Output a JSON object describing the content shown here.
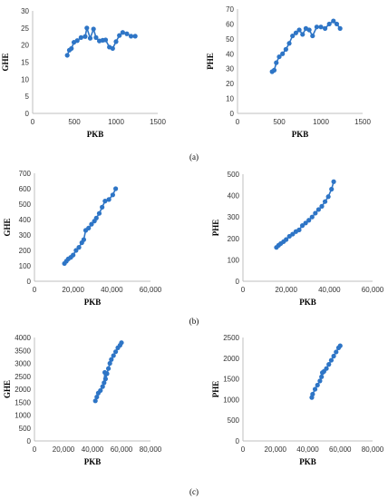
{
  "colors": {
    "series": "#2e75c6",
    "axis": "#bfbfbf"
  },
  "chart_data": [
    {
      "type": "line",
      "panel": "(a)",
      "xlabel": "PKB",
      "ylabel": "GHE",
      "xlim": [
        0,
        1500
      ],
      "ylim": [
        0,
        30
      ],
      "xticks": [
        0,
        500,
        1000,
        1500
      ],
      "xtick_labels": [
        "0",
        "500",
        "1000",
        "1500"
      ],
      "yticks": [
        0,
        5,
        10,
        15,
        20,
        25,
        30
      ],
      "ytick_labels": [
        "0",
        "5",
        "10",
        "15",
        "20",
        "25",
        "30"
      ],
      "series": [
        {
          "x": [
            415,
            440,
            465,
            495,
            535,
            580,
            630,
            650,
            690,
            730,
            760,
            800,
            840,
            875,
            920,
            960,
            1000,
            1040,
            1080,
            1130,
            1180,
            1230
          ],
          "y": [
            17,
            18.5,
            19,
            20.8,
            21.3,
            22.2,
            22.5,
            25,
            22,
            24.7,
            22.2,
            21.2,
            21.4,
            21.5,
            19.4,
            19,
            21,
            22.8,
            23.7,
            23.3,
            22.6,
            22.6
          ]
        }
      ]
    },
    {
      "type": "line",
      "panel": "(a)",
      "xlabel": "PKB",
      "ylabel": "PHE",
      "xlim": [
        0,
        1500
      ],
      "ylim": [
        0,
        70
      ],
      "xticks": [
        0,
        500,
        1000,
        1500
      ],
      "xtick_labels": [
        "0",
        "500",
        "1000",
        "1500"
      ],
      "yticks": [
        0,
        10,
        20,
        30,
        40,
        50,
        60,
        70
      ],
      "ytick_labels": [
        "0",
        "10",
        "20",
        "30",
        "40",
        "50",
        "60",
        "70"
      ],
      "series": [
        {
          "x": [
            415,
            440,
            465,
            500,
            540,
            580,
            620,
            660,
            700,
            740,
            780,
            820,
            860,
            900,
            950,
            1000,
            1050,
            1100,
            1150,
            1190,
            1230
          ],
          "y": [
            28,
            29,
            34,
            38,
            40,
            43,
            47,
            52,
            54,
            56,
            53,
            57,
            56,
            52,
            58,
            58,
            57,
            60,
            62,
            60,
            57
          ]
        }
      ]
    },
    {
      "type": "line",
      "panel": "(b)",
      "xlabel": "PKB",
      "ylabel": "GHE",
      "xlim": [
        0,
        60000
      ],
      "ylim": [
        0,
        700
      ],
      "xticks": [
        0,
        20000,
        40000,
        60000
      ],
      "xtick_labels": [
        "0",
        "20,000",
        "40,000",
        "60,000"
      ],
      "yticks": [
        0,
        100,
        200,
        300,
        400,
        500,
        600,
        700
      ],
      "ytick_labels": [
        "0",
        "100",
        "200",
        "300",
        "400",
        "500",
        "600",
        "700"
      ],
      "series": [
        {
          "x": [
            15500,
            16500,
            17500,
            18800,
            20000,
            21500,
            23000,
            24500,
            25500,
            26500,
            28000,
            29500,
            31000,
            32000,
            33500,
            35000,
            36500,
            38500,
            40500,
            42000
          ],
          "y": [
            115,
            130,
            145,
            155,
            170,
            200,
            220,
            250,
            270,
            330,
            345,
            370,
            390,
            410,
            440,
            480,
            520,
            530,
            560,
            600
          ]
        }
      ]
    },
    {
      "type": "line",
      "panel": "(b)",
      "xlabel": "PKB",
      "ylabel": "PHE",
      "xlim": [
        0,
        60000
      ],
      "ylim": [
        0,
        500
      ],
      "xticks": [
        0,
        20000,
        40000,
        60000
      ],
      "xtick_labels": [
        "0",
        "20,000",
        "40,000",
        "60,000"
      ],
      "yticks": [
        0,
        100,
        200,
        300,
        400,
        500
      ],
      "ytick_labels": [
        "0",
        "100",
        "200",
        "300",
        "400",
        "500"
      ],
      "series": [
        {
          "x": [
            15500,
            16500,
            17500,
            18800,
            20000,
            21500,
            23000,
            24500,
            26000,
            27500,
            29000,
            30500,
            32000,
            33500,
            35000,
            36500,
            38000,
            39500,
            41000,
            42000
          ],
          "y": [
            158,
            168,
            176,
            185,
            195,
            210,
            220,
            232,
            240,
            260,
            272,
            285,
            300,
            318,
            335,
            350,
            372,
            395,
            430,
            465
          ]
        }
      ]
    },
    {
      "type": "line",
      "panel": "(c)",
      "xlabel": "PKB",
      "ylabel": "GHE",
      "xlim": [
        0,
        80000
      ],
      "ylim": [
        0,
        4000
      ],
      "xticks": [
        0,
        20000,
        40000,
        60000,
        80000
      ],
      "xtick_labels": [
        "0",
        "20,000",
        "40,000",
        "60,000",
        "80,000"
      ],
      "yticks": [
        0,
        500,
        1000,
        1500,
        2000,
        2500,
        3000,
        3500,
        4000
      ],
      "ytick_labels": [
        "0",
        "500",
        "1000",
        "1500",
        "2000",
        "2500",
        "3000",
        "3500",
        "4000"
      ],
      "series": [
        {
          "x": [
            42000,
            43000,
            44000,
            45500,
            47000,
            48000,
            48500,
            49000,
            50000,
            51000,
            52000,
            53000,
            54500,
            56000,
            57500,
            59000,
            60000
          ],
          "y": [
            1550,
            1700,
            1850,
            1950,
            2100,
            2250,
            2650,
            2400,
            2600,
            2800,
            3000,
            3150,
            3300,
            3450,
            3600,
            3700,
            3800
          ]
        }
      ]
    },
    {
      "type": "line",
      "panel": "(c)",
      "xlabel": "PKB",
      "ylabel": "PHE",
      "xlim": [
        0,
        80000
      ],
      "ylim": [
        0,
        2500
      ],
      "xticks": [
        0,
        20000,
        40000,
        60000,
        80000
      ],
      "xtick_labels": [
        "0",
        "20,000",
        "40,000",
        "60,000",
        "80,000"
      ],
      "yticks": [
        0,
        500,
        1000,
        1500,
        2000,
        2500
      ],
      "ytick_labels": [
        "0",
        "500",
        "1000",
        "1500",
        "2000",
        "2500"
      ],
      "series": [
        {
          "x": [
            42500,
            43000,
            44500,
            46000,
            47500,
            48500,
            49000,
            50000,
            51500,
            53000,
            54500,
            56000,
            57500,
            59000,
            60000
          ],
          "y": [
            1050,
            1130,
            1250,
            1350,
            1450,
            1550,
            1650,
            1680,
            1750,
            1850,
            1950,
            2050,
            2150,
            2250,
            2300
          ]
        }
      ]
    }
  ],
  "panel_labels": [
    "(a)",
    "(b)",
    "(c)"
  ]
}
